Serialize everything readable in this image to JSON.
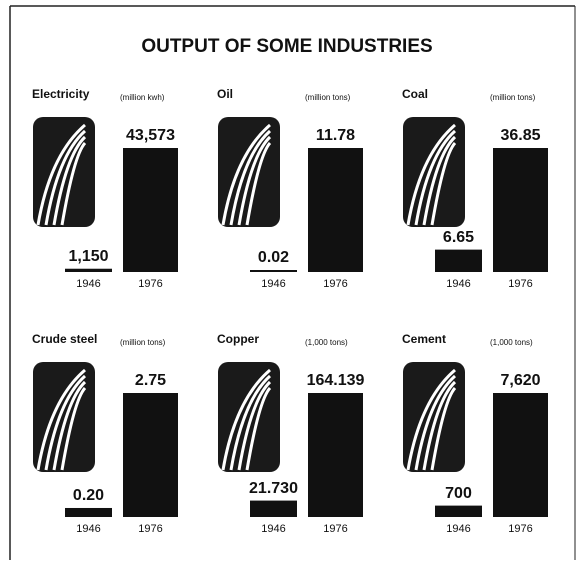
{
  "title": "OUTPUT OF SOME INDUSTRIES",
  "chart_data": [
    {
      "type": "bar",
      "title": "Electricity",
      "unit": "(million kwh)",
      "categories": [
        "1946",
        "1976"
      ],
      "values": [
        1150,
        43573
      ],
      "value_labels": [
        "1,150",
        "43,573"
      ],
      "ylim": [
        0,
        43573
      ],
      "color": "#111111"
    },
    {
      "type": "bar",
      "title": "Oil",
      "unit": "(million tons)",
      "categories": [
        "1946",
        "1976"
      ],
      "values": [
        0.02,
        11.78
      ],
      "value_labels": [
        "0.02",
        "11.78"
      ],
      "ylim": [
        0,
        11.78
      ],
      "color": "#111111"
    },
    {
      "type": "bar",
      "title": "Coal",
      "unit": "(million tons)",
      "categories": [
        "1946",
        "1976"
      ],
      "values": [
        6.65,
        36.85
      ],
      "value_labels": [
        "6.65",
        "36.85"
      ],
      "ylim": [
        0,
        36.85
      ],
      "color": "#111111"
    },
    {
      "type": "bar",
      "title": "Crude steel",
      "unit": "(million tons)",
      "categories": [
        "1946",
        "1976"
      ],
      "values": [
        0.2,
        2.75
      ],
      "value_labels": [
        "0.20",
        "2.75"
      ],
      "ylim": [
        0,
        2.75
      ],
      "color": "#111111"
    },
    {
      "type": "bar",
      "title": "Copper",
      "unit": "(1,000 tons)",
      "categories": [
        "1946",
        "1976"
      ],
      "values": [
        21.73,
        164.139
      ],
      "value_labels": [
        "21.730",
        "164.139"
      ],
      "ylim": [
        0,
        164.139
      ],
      "color": "#111111"
    },
    {
      "type": "bar",
      "title": "Cement",
      "unit": "(1,000 tons)",
      "categories": [
        "1946",
        "1976"
      ],
      "values": [
        700,
        7620
      ],
      "value_labels": [
        "700",
        "7,620"
      ],
      "ylim": [
        0,
        7620
      ],
      "color": "#111111"
    }
  ]
}
